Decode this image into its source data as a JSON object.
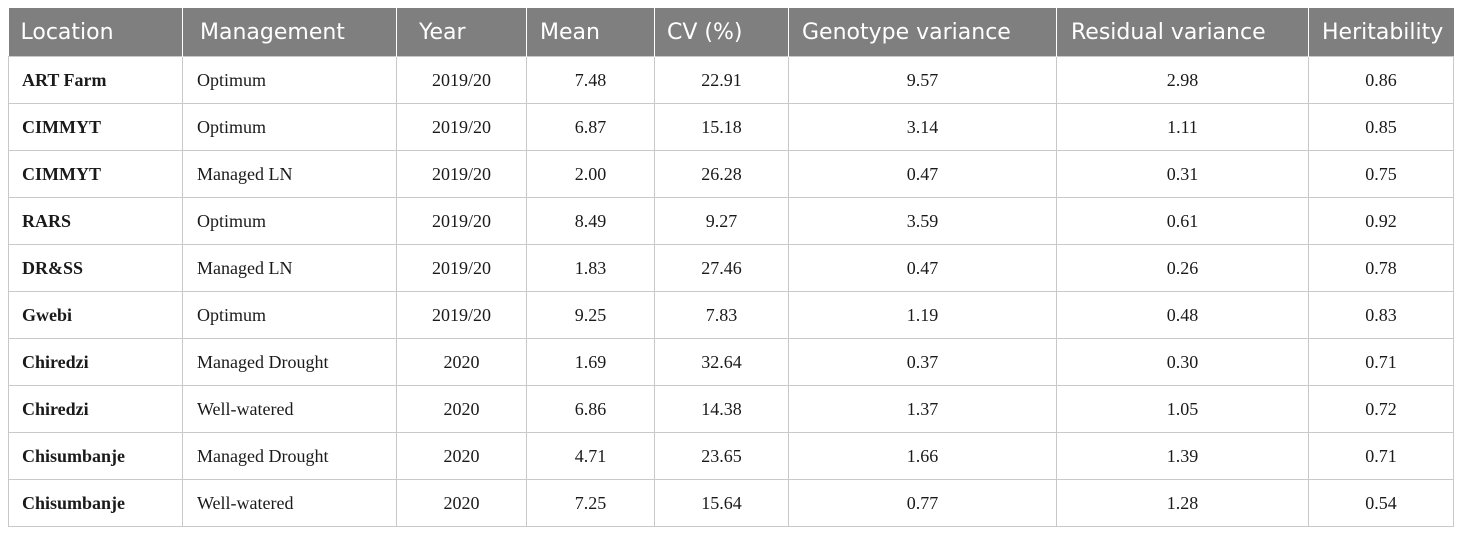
{
  "table": {
    "columns": [
      "Location",
      "Management",
      "Year",
      "Mean",
      "CV (%)",
      "Genotype variance",
      "Residual variance",
      "Heritability"
    ],
    "rows": [
      [
        "ART Farm",
        "Optimum",
        "2019/20",
        "7.48",
        "22.91",
        "9.57",
        "2.98",
        "0.86"
      ],
      [
        "CIMMYT",
        "Optimum",
        "2019/20",
        "6.87",
        "15.18",
        "3.14",
        "1.11",
        "0.85"
      ],
      [
        "CIMMYT",
        "Managed LN",
        "2019/20",
        "2.00",
        "26.28",
        "0.47",
        "0.31",
        "0.75"
      ],
      [
        "RARS",
        "Optimum",
        "2019/20",
        "8.49",
        "9.27",
        "3.59",
        "0.61",
        "0.92"
      ],
      [
        "DR&SS",
        "Managed LN",
        "2019/20",
        "1.83",
        "27.46",
        "0.47",
        "0.26",
        "0.78"
      ],
      [
        "Gwebi",
        "Optimum",
        "2019/20",
        "9.25",
        "7.83",
        "1.19",
        "0.48",
        "0.83"
      ],
      [
        "Chiredzi",
        "Managed Drought",
        "2020",
        "1.69",
        "32.64",
        "0.37",
        "0.30",
        "0.71"
      ],
      [
        "Chiredzi",
        "Well-watered",
        "2020",
        "6.86",
        "14.38",
        "1.37",
        "1.05",
        "0.72"
      ],
      [
        "Chisumbanje",
        "Managed Drought",
        "2020",
        "4.71",
        "23.65",
        "1.66",
        "1.39",
        "0.71"
      ],
      [
        "Chisumbanje",
        "Well-watered",
        "2020",
        "7.25",
        "15.64",
        "0.77",
        "1.28",
        "0.54"
      ]
    ]
  }
}
